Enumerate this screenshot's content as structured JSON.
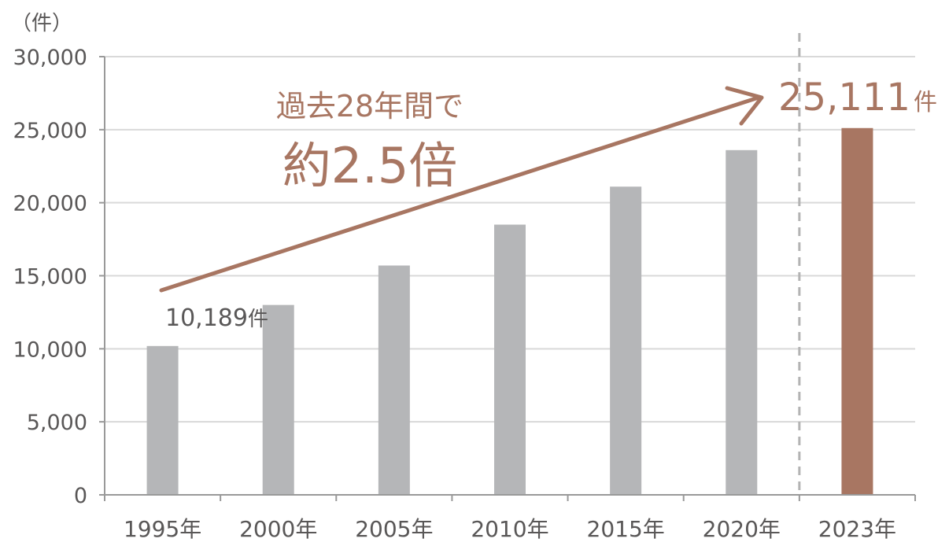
{
  "chart_data": {
    "type": "bar",
    "y_unit_label": "（件）",
    "categories": [
      "1995年",
      "2000年",
      "2005年",
      "2010年",
      "2015年",
      "2020年",
      "2023年"
    ],
    "values": [
      10189,
      13000,
      15700,
      18500,
      21100,
      23600,
      25111
    ],
    "ylim": [
      0,
      30000
    ],
    "yticks": [
      "0",
      "5,000",
      "10,000",
      "15,000",
      "20,000",
      "25,000",
      "30,000"
    ],
    "grid": true,
    "highlight_index": 6,
    "colors": {
      "bar": "#b5b6b8",
      "highlight_bar": "#a87662",
      "accent": "#a87662",
      "axis": "#999999",
      "grid": "#d9d9d9",
      "text": "#595757"
    },
    "annotations": {
      "start_value_text": "10,189",
      "start_unit": "件",
      "end_value_text": "25,111",
      "end_unit": "件",
      "headline_line1": "過去28年間で",
      "headline_line2": "約2.5倍"
    }
  }
}
